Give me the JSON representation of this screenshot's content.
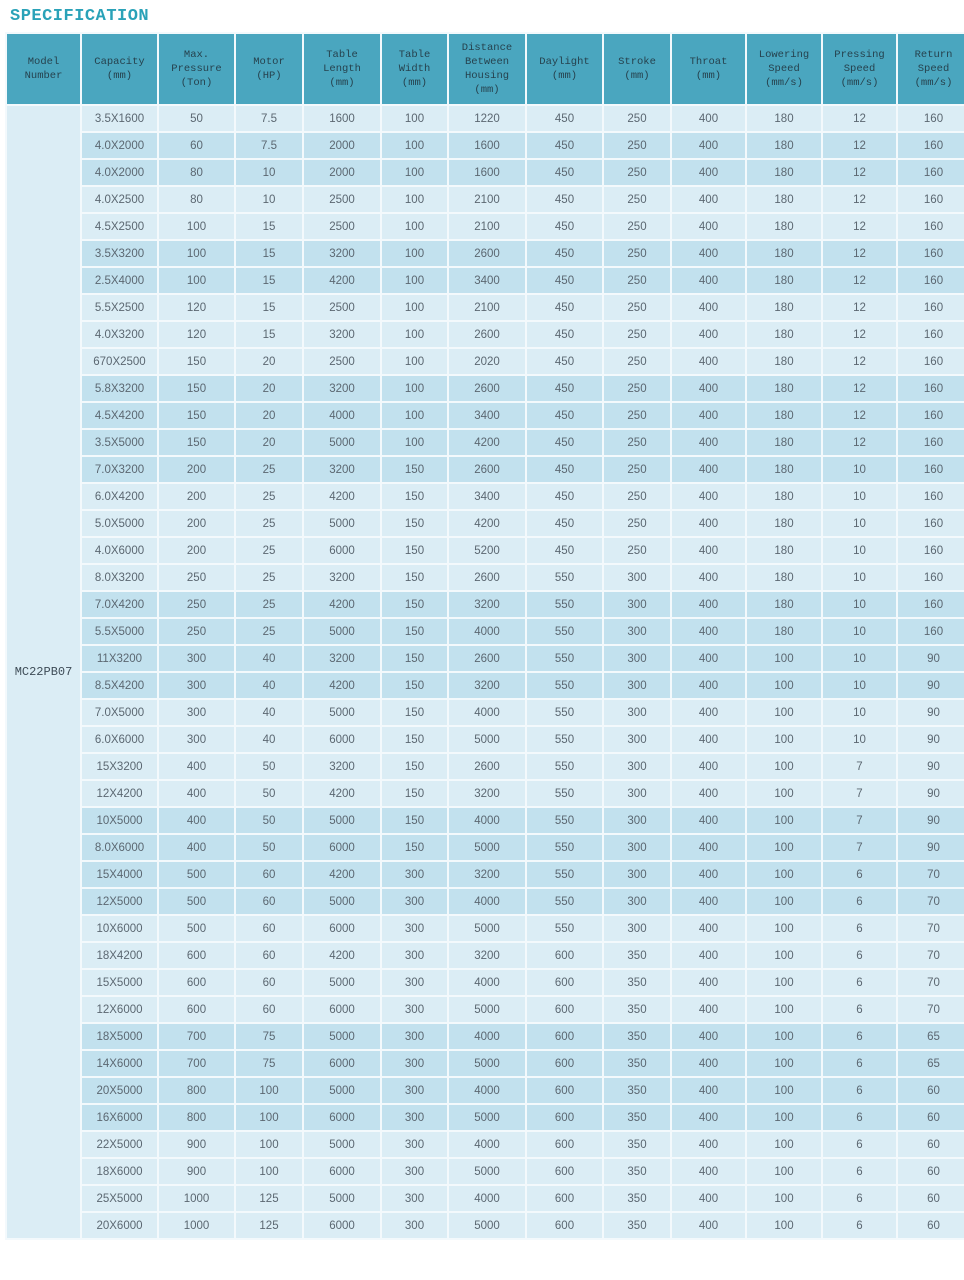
{
  "title": "SPECIFICATION",
  "colors": {
    "title_text": "#2aa2b8",
    "header_bg": "#4aa6bf",
    "header_text": "#26424e",
    "row_light_bg": "#dbedf5",
    "row_medium_bg": "#c2e1ee",
    "model_cell_bg": "#e1eff6",
    "cell_text": "#5b6771"
  },
  "table": {
    "model_number": "MC22PB07",
    "columns": [
      {
        "id": "model-number",
        "label": "Model\nNumber"
      },
      {
        "id": "capacity",
        "label": "Capacity\n(mm)"
      },
      {
        "id": "max-pressure",
        "label": "Max.\nPressure\n(Ton)"
      },
      {
        "id": "motor",
        "label": "Motor\n(HP)"
      },
      {
        "id": "table-length",
        "label": "Table\nLength\n(mm)"
      },
      {
        "id": "table-width",
        "label": "Table\nWidth\n(mm)"
      },
      {
        "id": "distance-between-housing",
        "label": "Distance\nBetween\nHousing\n(mm)"
      },
      {
        "id": "daylight",
        "label": "Daylight\n(mm)"
      },
      {
        "id": "stroke",
        "label": "Stroke\n(mm)"
      },
      {
        "id": "throat",
        "label": "Throat\n(mm)"
      },
      {
        "id": "lowering-speed",
        "label": "Lowering\nSpeed\n(mm/s)"
      },
      {
        "id": "pressing-speed",
        "label": "Pressing\nSpeed\n(mm/s)"
      },
      {
        "id": "return-speed",
        "label": "Return\nSpeed\n(mm/s)"
      }
    ],
    "rows": [
      {
        "shade": "light",
        "cells": [
          "3.5X1600",
          "50",
          "7.5",
          "1600",
          "100",
          "1220",
          "450",
          "250",
          "400",
          "180",
          "12",
          "160"
        ]
      },
      {
        "shade": "medium",
        "cells": [
          "4.0X2000",
          "60",
          "7.5",
          "2000",
          "100",
          "1600",
          "450",
          "250",
          "400",
          "180",
          "12",
          "160"
        ]
      },
      {
        "shade": "medium",
        "cells": [
          "4.0X2000",
          "80",
          "10",
          "2000",
          "100",
          "1600",
          "450",
          "250",
          "400",
          "180",
          "12",
          "160"
        ]
      },
      {
        "shade": "light",
        "cells": [
          "4.0X2500",
          "80",
          "10",
          "2500",
          "100",
          "2100",
          "450",
          "250",
          "400",
          "180",
          "12",
          "160"
        ]
      },
      {
        "shade": "light",
        "cells": [
          "4.5X2500",
          "100",
          "15",
          "2500",
          "100",
          "2100",
          "450",
          "250",
          "400",
          "180",
          "12",
          "160"
        ]
      },
      {
        "shade": "medium",
        "cells": [
          "3.5X3200",
          "100",
          "15",
          "3200",
          "100",
          "2600",
          "450",
          "250",
          "400",
          "180",
          "12",
          "160"
        ]
      },
      {
        "shade": "medium",
        "cells": [
          "2.5X4000",
          "100",
          "15",
          "4200",
          "100",
          "3400",
          "450",
          "250",
          "400",
          "180",
          "12",
          "160"
        ]
      },
      {
        "shade": "light",
        "cells": [
          "5.5X2500",
          "120",
          "15",
          "2500",
          "100",
          "2100",
          "450",
          "250",
          "400",
          "180",
          "12",
          "160"
        ]
      },
      {
        "shade": "light",
        "cells": [
          "4.0X3200",
          "120",
          "15",
          "3200",
          "100",
          "2600",
          "450",
          "250",
          "400",
          "180",
          "12",
          "160"
        ]
      },
      {
        "shade": "light",
        "cells": [
          "670X2500",
          "150",
          "20",
          "2500",
          "100",
          "2020",
          "450",
          "250",
          "400",
          "180",
          "12",
          "160"
        ]
      },
      {
        "shade": "medium",
        "cells": [
          "5.8X3200",
          "150",
          "20",
          "3200",
          "100",
          "2600",
          "450",
          "250",
          "400",
          "180",
          "12",
          "160"
        ]
      },
      {
        "shade": "medium",
        "cells": [
          "4.5X4200",
          "150",
          "20",
          "4000",
          "100",
          "3400",
          "450",
          "250",
          "400",
          "180",
          "12",
          "160"
        ]
      },
      {
        "shade": "medium",
        "cells": [
          "3.5X5000",
          "150",
          "20",
          "5000",
          "100",
          "4200",
          "450",
          "250",
          "400",
          "180",
          "12",
          "160"
        ]
      },
      {
        "shade": "medium",
        "cells": [
          "7.0X3200",
          "200",
          "25",
          "3200",
          "150",
          "2600",
          "450",
          "250",
          "400",
          "180",
          "10",
          "160"
        ]
      },
      {
        "shade": "light",
        "cells": [
          "6.0X4200",
          "200",
          "25",
          "4200",
          "150",
          "3400",
          "450",
          "250",
          "400",
          "180",
          "10",
          "160"
        ]
      },
      {
        "shade": "light",
        "cells": [
          "5.0X5000",
          "200",
          "25",
          "5000",
          "150",
          "4200",
          "450",
          "250",
          "400",
          "180",
          "10",
          "160"
        ]
      },
      {
        "shade": "light",
        "cells": [
          "4.0X6000",
          "200",
          "25",
          "6000",
          "150",
          "5200",
          "450",
          "250",
          "400",
          "180",
          "10",
          "160"
        ]
      },
      {
        "shade": "light",
        "cells": [
          "8.0X3200",
          "250",
          "25",
          "3200",
          "150",
          "2600",
          "550",
          "300",
          "400",
          "180",
          "10",
          "160"
        ]
      },
      {
        "shade": "medium",
        "cells": [
          "7.0X4200",
          "250",
          "25",
          "4200",
          "150",
          "3200",
          "550",
          "300",
          "400",
          "180",
          "10",
          "160"
        ]
      },
      {
        "shade": "medium",
        "cells": [
          "5.5X5000",
          "250",
          "25",
          "5000",
          "150",
          "4000",
          "550",
          "300",
          "400",
          "180",
          "10",
          "160"
        ]
      },
      {
        "shade": "medium",
        "cells": [
          "11X3200",
          "300",
          "40",
          "3200",
          "150",
          "2600",
          "550",
          "300",
          "400",
          "100",
          "10",
          "90"
        ]
      },
      {
        "shade": "medium",
        "cells": [
          "8.5X4200",
          "300",
          "40",
          "4200",
          "150",
          "3200",
          "550",
          "300",
          "400",
          "100",
          "10",
          "90"
        ]
      },
      {
        "shade": "light",
        "cells": [
          "7.0X5000",
          "300",
          "40",
          "5000",
          "150",
          "4000",
          "550",
          "300",
          "400",
          "100",
          "10",
          "90"
        ]
      },
      {
        "shade": "light",
        "cells": [
          "6.0X6000",
          "300",
          "40",
          "6000",
          "150",
          "5000",
          "550",
          "300",
          "400",
          "100",
          "10",
          "90"
        ]
      },
      {
        "shade": "light",
        "cells": [
          "15X3200",
          "400",
          "50",
          "3200",
          "150",
          "2600",
          "550",
          "300",
          "400",
          "100",
          "7",
          "90"
        ]
      },
      {
        "shade": "light",
        "cells": [
          "12X4200",
          "400",
          "50",
          "4200",
          "150",
          "3200",
          "550",
          "300",
          "400",
          "100",
          "7",
          "90"
        ]
      },
      {
        "shade": "medium",
        "cells": [
          "10X5000",
          "400",
          "50",
          "5000",
          "150",
          "4000",
          "550",
          "300",
          "400",
          "100",
          "7",
          "90"
        ]
      },
      {
        "shade": "medium",
        "cells": [
          "8.0X6000",
          "400",
          "50",
          "6000",
          "150",
          "5000",
          "550",
          "300",
          "400",
          "100",
          "7",
          "90"
        ]
      },
      {
        "shade": "medium",
        "cells": [
          "15X4000",
          "500",
          "60",
          "4200",
          "300",
          "3200",
          "550",
          "300",
          "400",
          "100",
          "6",
          "70"
        ]
      },
      {
        "shade": "medium",
        "cells": [
          "12X5000",
          "500",
          "60",
          "5000",
          "300",
          "4000",
          "550",
          "300",
          "400",
          "100",
          "6",
          "70"
        ]
      },
      {
        "shade": "light",
        "cells": [
          "10X6000",
          "500",
          "60",
          "6000",
          "300",
          "5000",
          "550",
          "300",
          "400",
          "100",
          "6",
          "70"
        ]
      },
      {
        "shade": "light",
        "cells": [
          "18X4200",
          "600",
          "60",
          "4200",
          "300",
          "3200",
          "600",
          "350",
          "400",
          "100",
          "6",
          "70"
        ]
      },
      {
        "shade": "light",
        "cells": [
          "15X5000",
          "600",
          "60",
          "5000",
          "300",
          "4000",
          "600",
          "350",
          "400",
          "100",
          "6",
          "70"
        ]
      },
      {
        "shade": "light",
        "cells": [
          "12X6000",
          "600",
          "60",
          "6000",
          "300",
          "5000",
          "600",
          "350",
          "400",
          "100",
          "6",
          "70"
        ]
      },
      {
        "shade": "medium",
        "cells": [
          "18X5000",
          "700",
          "75",
          "5000",
          "300",
          "4000",
          "600",
          "350",
          "400",
          "100",
          "6",
          "65"
        ]
      },
      {
        "shade": "medium",
        "cells": [
          "14X6000",
          "700",
          "75",
          "6000",
          "300",
          "5000",
          "600",
          "350",
          "400",
          "100",
          "6",
          "65"
        ]
      },
      {
        "shade": "medium",
        "cells": [
          "20X5000",
          "800",
          "100",
          "5000",
          "300",
          "4000",
          "600",
          "350",
          "400",
          "100",
          "6",
          "60"
        ]
      },
      {
        "shade": "medium",
        "cells": [
          "16X6000",
          "800",
          "100",
          "6000",
          "300",
          "5000",
          "600",
          "350",
          "400",
          "100",
          "6",
          "60"
        ]
      },
      {
        "shade": "light",
        "cells": [
          "22X5000",
          "900",
          "100",
          "5000",
          "300",
          "4000",
          "600",
          "350",
          "400",
          "100",
          "6",
          "60"
        ]
      },
      {
        "shade": "light",
        "cells": [
          "18X6000",
          "900",
          "100",
          "6000",
          "300",
          "5000",
          "600",
          "350",
          "400",
          "100",
          "6",
          "60"
        ]
      },
      {
        "shade": "light",
        "cells": [
          "25X5000",
          "1000",
          "125",
          "5000",
          "300",
          "4000",
          "600",
          "350",
          "400",
          "100",
          "6",
          "60"
        ]
      },
      {
        "shade": "light",
        "cells": [
          "20X6000",
          "1000",
          "125",
          "6000",
          "300",
          "5000",
          "600",
          "350",
          "400",
          "100",
          "6",
          "60"
        ]
      }
    ]
  }
}
